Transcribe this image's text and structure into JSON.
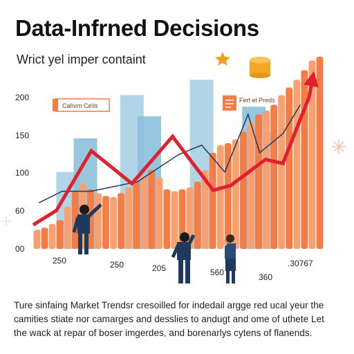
{
  "header": {
    "title": "Data-Infrned Decisions",
    "subtitle": "Wrict yel imper containt"
  },
  "body_text": [
    "Ture sinfaing Market Trendsr cresoilled for indedail argge red ucal yeur the",
    "camities stiate nor camarges and desslies to andugt and ome of uthete Let",
    "the wack at repar of boser imgerdes, and borenarlys cytens of flanends."
  ],
  "colors": {
    "orange": "#f47c45",
    "orange_light": "#f8a070",
    "blue_bar": "#a6d0e4",
    "blue_bar_dark": "#8cc0dc",
    "red_line": "#e0202e",
    "navy_line": "#1f3a5f",
    "coin": "#f5a623",
    "star": "#f29f1f"
  },
  "chart_data": {
    "type": "bar",
    "ylim": [
      0,
      200
    ],
    "y_ticks": [
      "00",
      "60",
      "100",
      "150",
      "200"
    ],
    "x_ticks": [
      "250",
      "250",
      "205",
      "560",
      "360"
    ],
    "corner_label": ".30767",
    "legend": [
      "Cal\\vrn Ce\\ls",
      "Fert el Preds"
    ],
    "orange_series": [
      {
        "x": 0.0,
        "values": [
          20
        ]
      },
      {
        "x": 0.04,
        "values": [
          25
        ]
      }
    ],
    "orange_bars": [
      20,
      22,
      26,
      30,
      44,
      60,
      68,
      62,
      58,
      55,
      54,
      58,
      64,
      70,
      76,
      82,
      74,
      62,
      60,
      62,
      64,
      70,
      82,
      100,
      108,
      110,
      114,
      122,
      132,
      140,
      144,
      150,
      160,
      168,
      176,
      186,
      196,
      200
    ],
    "blue_bars": [
      {
        "center": 0.12,
        "value": 80
      },
      {
        "center": 0.18,
        "value": 115
      },
      {
        "center": 0.34,
        "value": 160
      },
      {
        "center": 0.4,
        "value": 138
      },
      {
        "center": 0.58,
        "value": 176
      },
      {
        "center": 0.76,
        "value": 148
      },
      {
        "center": 0.8,
        "value": 122
      }
    ],
    "red_line": [
      [
        0.0,
        25
      ],
      [
        0.08,
        40
      ],
      [
        0.2,
        102
      ],
      [
        0.34,
        68
      ],
      [
        0.48,
        117
      ],
      [
        0.62,
        61
      ],
      [
        0.68,
        66
      ],
      [
        0.8,
        93
      ],
      [
        0.86,
        89
      ],
      [
        0.95,
        158
      ],
      [
        1.0,
        185
      ]
    ],
    "navy_line": [
      [
        0.02,
        48
      ],
      [
        0.1,
        60
      ],
      [
        0.2,
        60
      ],
      [
        0.36,
        70
      ],
      [
        0.5,
        98
      ],
      [
        0.58,
        108
      ],
      [
        0.66,
        80
      ],
      [
        0.74,
        140
      ],
      [
        0.78,
        100
      ],
      [
        0.86,
        120
      ],
      [
        0.92,
        150
      ]
    ]
  }
}
